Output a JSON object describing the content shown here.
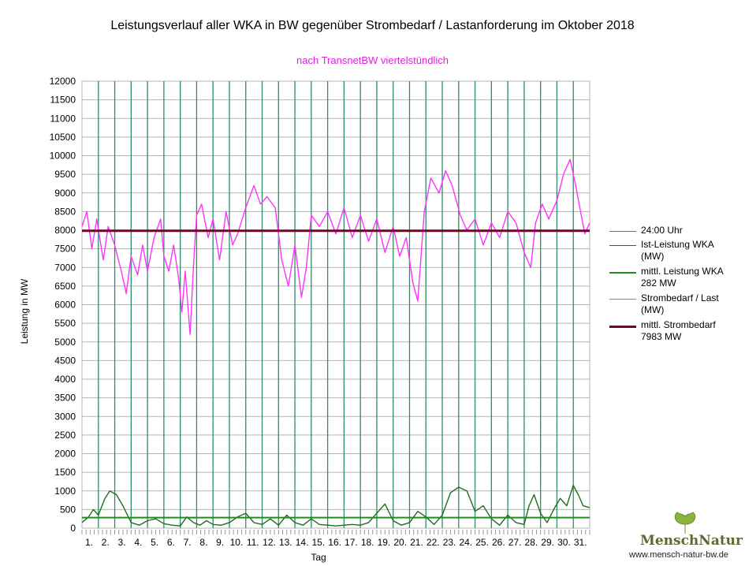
{
  "chart_data": {
    "type": "line",
    "title": "Leistungsverlauf aller WKA in BW gegenüber  Strombedarf / Lastanforderung im Oktober 2018",
    "subtitle": "nach TransnetBW viertelstündlich",
    "xlabel": "Tag",
    "ylabel": "Leistung in MW",
    "ylim": [
      0,
      12000
    ],
    "ytick_step": 500,
    "xlim": [
      0,
      31
    ],
    "grid": true,
    "legend_position": "right",
    "x_ticks": [
      "1.",
      "2.",
      "3.",
      "4.",
      "5.",
      "6.",
      "7.",
      "8.",
      "9.",
      "10.",
      "11.",
      "12.",
      "13.",
      "14.",
      "15.",
      "16.",
      "17.",
      "18.",
      "19.",
      "20.",
      "21.",
      "22.",
      "23.",
      "24.",
      "25.",
      "26.",
      "27.",
      "28.",
      "29.",
      "30.",
      "31."
    ],
    "day_markers": "24:00 Uhr",
    "series": [
      {
        "name": "Strombedarf / Last (MW)",
        "color": "#ff33ff",
        "x": [
          0,
          0.3,
          0.6,
          0.9,
          1.3,
          1.6,
          2.0,
          2.4,
          2.7,
          3.0,
          3.4,
          3.7,
          4.0,
          4.4,
          4.8,
          5.0,
          5.3,
          5.6,
          5.9,
          6.1,
          6.3,
          6.6,
          6.8,
          7.0,
          7.3,
          7.7,
          8.0,
          8.4,
          8.8,
          9.2,
          9.5,
          10.0,
          10.5,
          10.9,
          11.3,
          11.8,
          12.2,
          12.6,
          13.0,
          13.4,
          13.7,
          14.0,
          14.5,
          15.0,
          15.5,
          16.0,
          16.5,
          17.0,
          17.5,
          18.0,
          18.5,
          19.0,
          19.4,
          19.8,
          20.2,
          20.5,
          20.9,
          21.3,
          21.8,
          22.2,
          22.6,
          23.1,
          23.5,
          24.0,
          24.5,
          25.0,
          25.5,
          26.0,
          26.5,
          27.0,
          27.4,
          27.7,
          28.1,
          28.5,
          29.0,
          29.4,
          29.8,
          30.1,
          30.4,
          30.7,
          31.0
        ],
        "values": [
          8100,
          8500,
          7500,
          8300,
          7200,
          8100,
          7600,
          6900,
          6300,
          7300,
          6800,
          7600,
          6900,
          7800,
          8300,
          7300,
          6900,
          7600,
          6700,
          5800,
          6900,
          5200,
          7000,
          8400,
          8700,
          7800,
          8300,
          7200,
          8500,
          7600,
          7900,
          8600,
          9200,
          8700,
          8900,
          8600,
          7200,
          6500,
          7600,
          6200,
          7000,
          8400,
          8100,
          8500,
          7900,
          8600,
          7800,
          8400,
          7700,
          8300,
          7400,
          8100,
          7300,
          7800,
          6600,
          6100,
          8500,
          9400,
          9000,
          9600,
          9200,
          8400,
          8000,
          8300,
          7600,
          8200,
          7800,
          8500,
          8200,
          7400,
          7000,
          8200,
          8700,
          8300,
          8800,
          9500,
          9900,
          9300,
          8600,
          7900,
          8200
        ]
      },
      {
        "name": "Ist-Leistung WKA (MW)",
        "color": "#1e6e1e",
        "x": [
          0,
          0.4,
          0.7,
          1.0,
          1.4,
          1.7,
          2.1,
          2.5,
          3.0,
          3.5,
          4.0,
          4.5,
          5.0,
          5.5,
          6.0,
          6.4,
          6.8,
          7.2,
          7.6,
          8.0,
          8.5,
          9.0,
          9.5,
          10.0,
          10.5,
          11.0,
          11.5,
          12.0,
          12.5,
          13.0,
          13.5,
          14.0,
          14.5,
          15.0,
          15.5,
          16.0,
          16.5,
          17.0,
          17.5,
          18.0,
          18.5,
          19.0,
          19.5,
          20.0,
          20.5,
          21.0,
          21.5,
          22.0,
          22.5,
          23.0,
          23.5,
          24.0,
          24.5,
          25.0,
          25.5,
          26.0,
          26.5,
          27.0,
          27.3,
          27.6,
          28.0,
          28.4,
          28.8,
          29.2,
          29.6,
          30.0,
          30.3,
          30.6,
          31.0
        ],
        "values": [
          150,
          300,
          500,
          350,
          800,
          1000,
          900,
          600,
          150,
          80,
          200,
          250,
          120,
          80,
          60,
          300,
          150,
          80,
          200,
          100,
          80,
          150,
          300,
          400,
          150,
          100,
          250,
          80,
          350,
          150,
          80,
          250,
          100,
          80,
          60,
          80,
          100,
          80,
          150,
          400,
          650,
          200,
          80,
          150,
          450,
          300,
          100,
          350,
          950,
          1100,
          1000,
          450,
          600,
          250,
          80,
          350,
          150,
          100,
          600,
          900,
          400,
          150,
          500,
          800,
          600,
          1150,
          900,
          600,
          550
        ]
      },
      {
        "name": "mittl. Leistung WKA",
        "value_label": "282 MW",
        "value": 282,
        "color": "#1e8c1e"
      },
      {
        "name": "mittl. Strombedarf",
        "value_label": "7983 MW",
        "value": 7983,
        "color": "#7a0021"
      }
    ]
  },
  "legend": [
    {
      "label": "24:00 Uhr",
      "color": "#2e8b6b",
      "width": 1
    },
    {
      "label": "Ist-Leistung WKA\n(MW)",
      "color": "#1e6e1e",
      "width": 1
    },
    {
      "label": "mittl. Leistung WKA\n282 MW",
      "color": "#1e8c1e",
      "width": 2
    },
    {
      "label": "Strombedarf / Last\n(MW)",
      "color": "#ff33ff",
      "width": 1
    },
    {
      "label": "mittl. Strombedarf\n7983 MW",
      "color": "#7a0021",
      "width": 3
    }
  ],
  "brand": {
    "name": "MenschNatur",
    "url": "www.mensch-natur-bw.de"
  }
}
